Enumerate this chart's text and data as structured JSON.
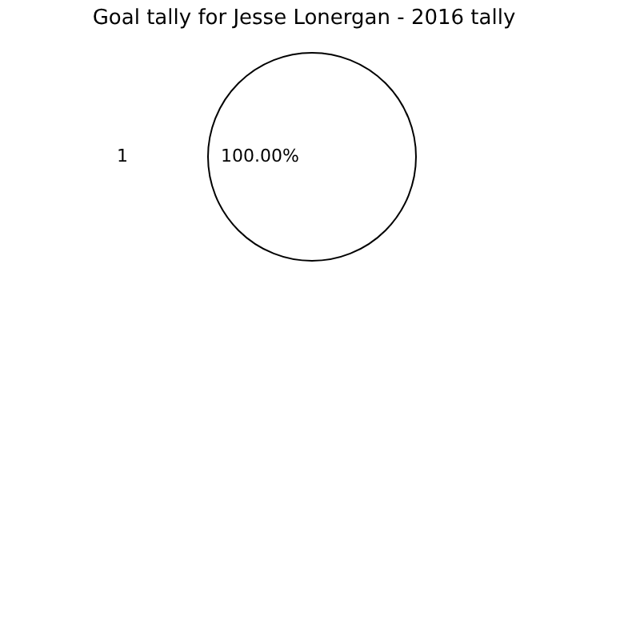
{
  "chart_data": {
    "type": "pie",
    "title": "Goal tally for Jesse Lonergan - 2016 tally",
    "categories": [
      "1"
    ],
    "values": [
      100
    ],
    "colors": [
      "#ffffff"
    ],
    "value_labels": [
      "100.00%"
    ],
    "legend": false
  }
}
